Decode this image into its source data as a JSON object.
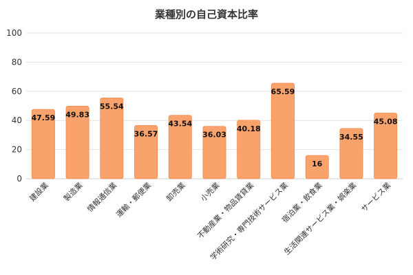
{
  "chart_data": {
    "type": "bar",
    "title": "業種別の自己資本比率",
    "xlabel": "",
    "ylabel": "",
    "categories": [
      "建設業",
      "製造業",
      "情報通信業",
      "運輸・郵便業",
      "卸売業",
      "小売業",
      "不動産業・物品賃貸業",
      "学術研究・専門技術サービス業",
      "宿泊業・飲食業",
      "生活関連サービス業・娯楽業",
      "サービス業"
    ],
    "values": [
      47.59,
      49.83,
      55.54,
      36.57,
      43.54,
      36.03,
      40.18,
      65.59,
      16,
      34.55,
      45.08
    ],
    "data_labels": [
      "47.59",
      "49.83",
      "55.54",
      "36.57",
      "43.54",
      "36.03",
      "40.18",
      "65.59",
      "16",
      "34.55",
      "45.08"
    ],
    "yticks": [
      "0",
      "20",
      "40",
      "60",
      "80",
      "100"
    ],
    "ylim": [
      0,
      100
    ],
    "grid": true,
    "legend": "none",
    "bar_color": "#F9A26C",
    "bar_edge_color": "#F27E3A"
  }
}
